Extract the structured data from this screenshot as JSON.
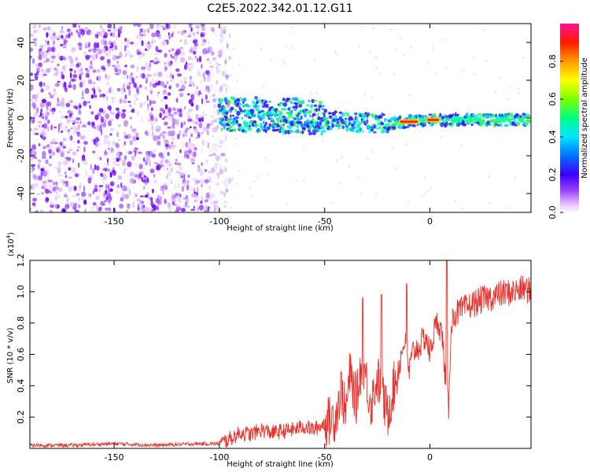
{
  "title": "C2E5.2022.342.01.12.G11",
  "chart_data": [
    {
      "type": "heatmap",
      "xlabel": "Height of straight line (km)",
      "ylabel": "Frequency (Hz)",
      "xlim": [
        -190,
        48
      ],
      "ylim": [
        -50,
        50
      ],
      "xticks": [
        -150,
        -100,
        -50,
        0
      ],
      "yticks": [
        -40,
        -20,
        0,
        20,
        40
      ],
      "colorbar": {
        "label": "Normalized spectral amplitude",
        "range": [
          0,
          1
        ],
        "ticks": [
          "0.0",
          "0.2",
          "0.4",
          "0.6",
          "0.8"
        ]
      },
      "description_values": {
        "noise_region_x": [
          -190,
          -95
        ],
        "signal_band_center_hz": [
          {
            "x": -90,
            "y": 2
          },
          {
            "x": -60,
            "y": 1
          },
          {
            "x": -40,
            "y": -2
          },
          {
            "x": -20,
            "y": -3
          },
          {
            "x": 0,
            "y": -1
          },
          {
            "x": 45,
            "y": -1
          }
        ],
        "peak_amplitude_regions_x": [
          [
            -15,
            -5
          ],
          [
            -2,
            5
          ]
        ]
      },
      "grid": false
    },
    {
      "type": "line",
      "xlabel": "Height of straight line (km)",
      "ylabel": "SNR (10 * v/v)",
      "multiplier_label": "(x10",
      "multiplier_exponent": "4",
      "xlim": [
        -190,
        48
      ],
      "ylim": [
        0,
        1.2
      ],
      "xticks": [
        -150,
        -100,
        -50,
        0
      ],
      "yticks": [
        "0.2",
        "0.4",
        "0.6",
        "0.8",
        "1.0",
        "1.2"
      ],
      "series_color": "#e8302a",
      "series": [
        {
          "name": "",
          "x": [
            -190,
            -170,
            -150,
            -130,
            -110,
            -100,
            -95,
            -90,
            -85,
            -80,
            -75,
            -70,
            -65,
            -60,
            -55,
            -50,
            -45,
            -42,
            -40,
            -38,
            -35,
            -32,
            -30,
            -28,
            -25,
            -22,
            -20,
            -18,
            -15,
            -12,
            -10,
            -8,
            -5,
            -2,
            0,
            2,
            4,
            6,
            8,
            9,
            10,
            12,
            15,
            20,
            25,
            30,
            35,
            40,
            45,
            48
          ],
          "y": [
            0.02,
            0.02,
            0.03,
            0.02,
            0.03,
            0.03,
            0.06,
            0.1,
            0.09,
            0.12,
            0.1,
            0.11,
            0.12,
            0.14,
            0.12,
            0.16,
            0.2,
            0.38,
            0.22,
            0.48,
            0.3,
            0.58,
            0.42,
            0.28,
            0.45,
            0.3,
            0.22,
            0.35,
            0.5,
            0.7,
            0.48,
            0.62,
            0.65,
            0.72,
            0.6,
            0.75,
            0.82,
            0.7,
            0.32,
            0.25,
            0.8,
            0.86,
            0.88,
            0.92,
            0.95,
            0.97,
            0.99,
            1.0,
            1.02,
            1.0
          ],
          "spikes": [
            {
              "x": -32,
              "y": 0.96
            },
            {
              "x": -23,
              "y": 0.98
            },
            {
              "x": -11,
              "y": 1.05
            },
            {
              "x": 8,
              "y": 1.2
            }
          ]
        }
      ]
    }
  ]
}
